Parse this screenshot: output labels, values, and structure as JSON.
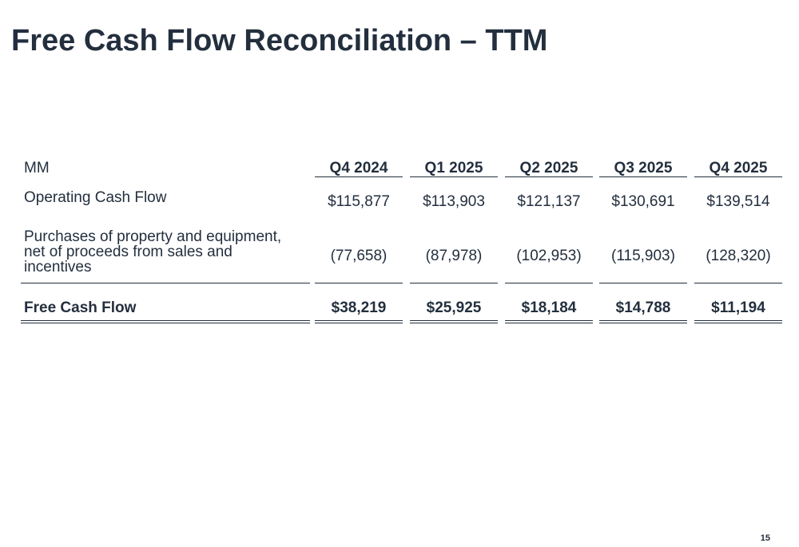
{
  "title": "Free Cash Flow Reconciliation – TTM",
  "table": {
    "header": [
      "MM",
      "Q4 2024",
      "Q1 2025",
      "Q2 2025",
      "Q3 2025",
      "Q4 2025"
    ],
    "rows": [
      [
        "Operating Cash Flow",
        "$115,877",
        "$113,903",
        "$121,137",
        "$130,691",
        "$139,514"
      ],
      [
        "Purchases of property and equipment, net of proceeds from sales and incentives",
        "(77,658)",
        "(87,978)",
        "(102,953)",
        "(115,903)",
        "(128,320)"
      ],
      [
        "Free Cash Flow",
        "$38,219",
        "$25,925",
        "$18,184",
        "$14,788",
        "$11,194"
      ]
    ]
  },
  "page_number": "15"
}
